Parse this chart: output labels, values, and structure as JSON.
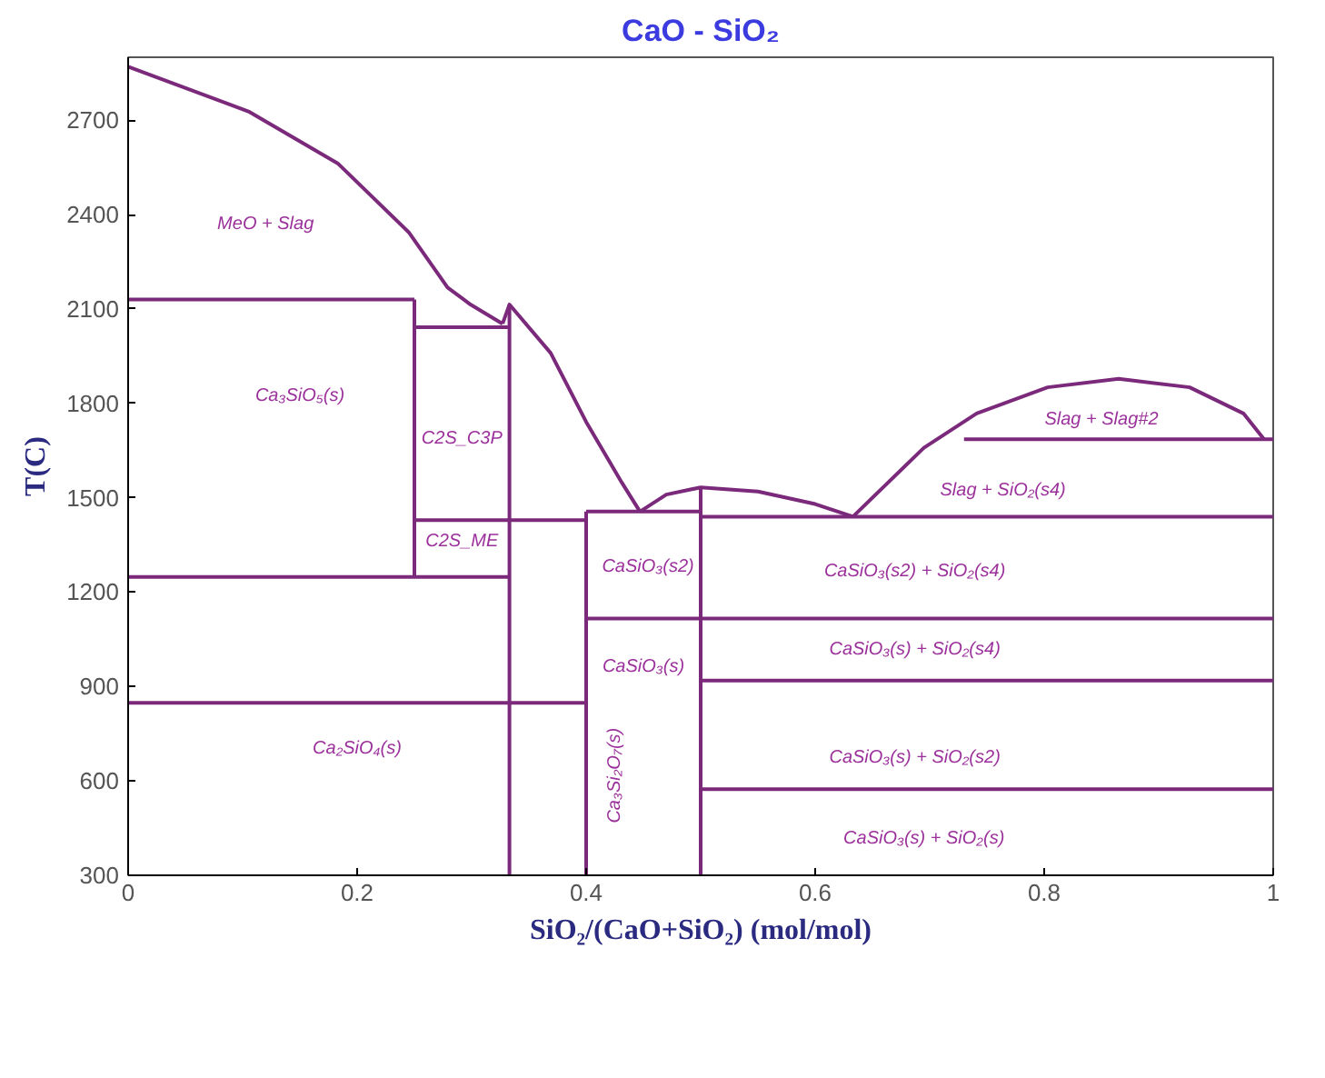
{
  "chart_data": {
    "type": "line",
    "title": "CaO - SiO₂",
    "xlabel": "SiO₂/(CaO+SiO₂) (mol/mol)",
    "ylabel": "T(C)",
    "xlim": [
      0,
      1
    ],
    "xticks": [
      0,
      0.2,
      0.4,
      0.6,
      0.8,
      1
    ],
    "ylim": [
      300,
      2900
    ],
    "yticks": [
      300,
      600,
      900,
      1200,
      1500,
      1800,
      2100,
      2400,
      2700
    ],
    "grid": false,
    "marker": "none",
    "line_style": "solid",
    "series": [
      {
        "color": "#7b2a7b",
        "x": [
          0,
          0.105,
          0.183,
          0.245,
          0.279,
          0.299,
          0.327
        ],
        "values": [
          2870,
          2728,
          2563,
          2344,
          2168,
          2114,
          2053
        ]
      },
      {
        "color": "#7b2a7b",
        "x": [
          0.327,
          0.333,
          0.369,
          0.4,
          0.431,
          0.447
        ],
        "values": [
          2053,
          2114,
          1960,
          1741,
          1549,
          1456
        ]
      },
      {
        "color": "#7b2a7b",
        "x": [
          0.447,
          0.47,
          0.5,
          0.55,
          0.6,
          0.633
        ],
        "values": [
          1456,
          1510,
          1533,
          1520,
          1480,
          1440
        ]
      },
      {
        "color": "#7b2a7b",
        "x": [
          0.633,
          0.695,
          0.741,
          0.803,
          0.865,
          0.927,
          0.974,
          0.992
        ],
        "values": [
          1440,
          1659,
          1768,
          1851,
          1878,
          1851,
          1768,
          1686
        ]
      },
      {
        "color": "#7b2a7b",
        "x": [
          0,
          0.25
        ],
        "values": [
          2130,
          2130
        ]
      },
      {
        "color": "#7b2a7b",
        "x": [
          0.25,
          0.333
        ],
        "values": [
          2042,
          2042
        ]
      },
      {
        "color": "#7b2a7b",
        "x": [
          0.25,
          0.4
        ],
        "values": [
          1429,
          1429
        ]
      },
      {
        "color": "#7b2a7b",
        "x": [
          0.4,
          0.5
        ],
        "values": [
          1456,
          1456
        ]
      },
      {
        "color": "#7b2a7b",
        "x": [
          0.5,
          1
        ],
        "values": [
          1440,
          1440
        ]
      },
      {
        "color": "#7b2a7b",
        "x": [
          0.73,
          1
        ],
        "values": [
          1686,
          1686
        ]
      },
      {
        "color": "#7b2a7b",
        "x": [
          0,
          0.333
        ],
        "values": [
          1248,
          1248
        ]
      },
      {
        "color": "#7b2a7b",
        "x": [
          0.4,
          1
        ],
        "values": [
          1116,
          1116
        ]
      },
      {
        "color": "#7b2a7b",
        "x": [
          0,
          0.4
        ],
        "values": [
          848,
          848
        ]
      },
      {
        "color": "#7b2a7b",
        "x": [
          0.5,
          1
        ],
        "values": [
          919,
          919
        ]
      },
      {
        "color": "#7b2a7b",
        "x": [
          0.5,
          1
        ],
        "values": [
          574,
          574
        ]
      },
      {
        "color": "#7b2a7b",
        "x": [
          0.25,
          0.25
        ],
        "values": [
          1248,
          2130
        ]
      },
      {
        "color": "#7b2a7b",
        "x": [
          0.333,
          0.333
        ],
        "values": [
          300,
          2114
        ]
      },
      {
        "color": "#7b2a7b",
        "x": [
          0.4,
          0.4
        ],
        "values": [
          300,
          1456
        ]
      },
      {
        "color": "#7b2a7b",
        "x": [
          0.5,
          0.5
        ],
        "values": [
          300,
          1533
        ]
      }
    ],
    "annotations": [
      "MeO + Slag",
      "Ca₃SiO₅(s)",
      "C2S_C3P",
      "C2S_ME",
      "CaSiO₃(s2)",
      "CaSiO₃(s2) + SiO₂(s4)",
      "CaSiO₃(s) + SiO₂(s4)",
      "CaSiO₃(s) + SiO₂(s2)",
      "CaSiO₃(s) + SiO₂(s)",
      "Slag + SiO₂(s4)",
      "Slag + Slag#2",
      "Ca₂SiO₄(s)",
      "Ca₃Si₂O₇(s)",
      "CaSiO₃(s)"
    ]
  }
}
